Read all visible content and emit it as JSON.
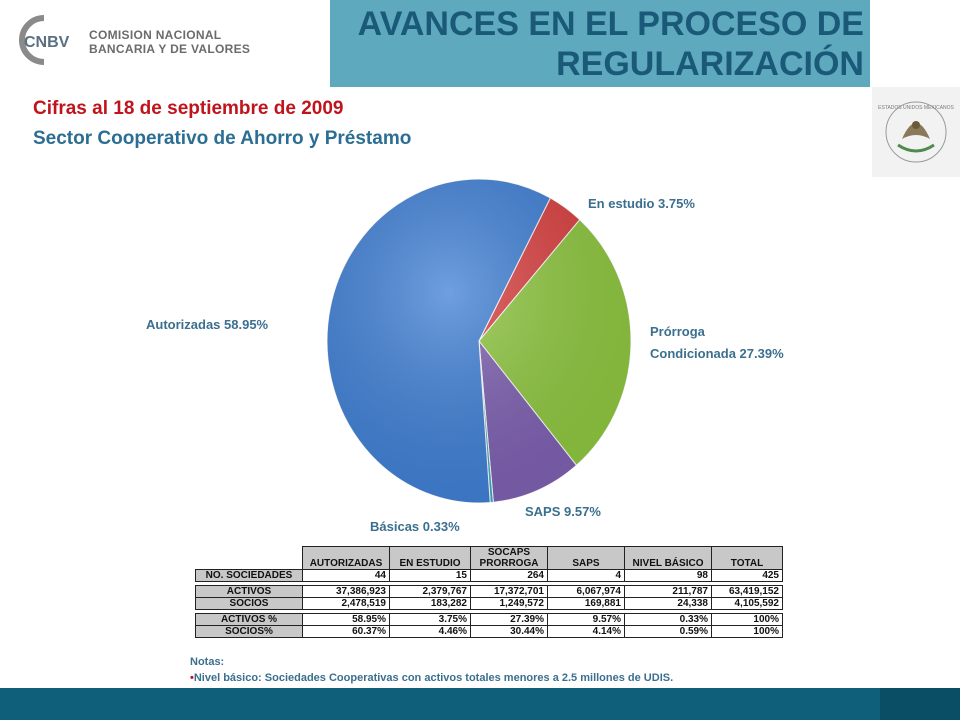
{
  "header": {
    "logo_text": "CNBV",
    "brand_line1": "COMISION NACIONAL",
    "brand_line2": "BANCARIA Y DE VALORES",
    "title_line1": "AVANCES EN EL PROCESO DE",
    "title_line2": "REGULARIZACIÓN",
    "seal_text": "ESTADOS UNIDOS MEXICANOS"
  },
  "subtitle": {
    "line1": "Cifras al 18 de septiembre de 2009",
    "line2": "Sector Cooperativo de Ahorro y Préstamo"
  },
  "colors": {
    "title_bar": "#5ea9bd",
    "subtitle_red": "#c0141c",
    "subtitle_blue": "#2c6e93",
    "footer": "#0f5f7a"
  },
  "chart_data": {
    "type": "pie",
    "slices": [
      {
        "name": "En estudio",
        "label": "En estudio  3.75%",
        "value": 3.75,
        "color": "#d94040"
      },
      {
        "name": "Prórroga Condicionada",
        "label_line1": "Prórroga",
        "label_line2": "Condicionada  27.39%",
        "value": 27.39,
        "color": "#8ec63f"
      },
      {
        "name": "SAPS",
        "label": "SAPS  9.57%",
        "value": 9.57,
        "color": "#7d5fb0"
      },
      {
        "name": "Básicas",
        "label": "Básicas  0.33%",
        "value": 0.33,
        "color": "#3aa7c4"
      },
      {
        "name": "Autorizadas",
        "label": "Autorizadas  58.95%",
        "value": 58.95,
        "color": "#3f7fd4"
      }
    ]
  },
  "table": {
    "headers": [
      "AUTORIZADAS",
      "EN ESTUDIO",
      "SOCAPS PRORROGA",
      "SAPS",
      "NIVEL BÁSICO",
      "TOTAL"
    ],
    "header_socaps_l1": "SOCAPS",
    "header_socaps_l2": "PRORROGA",
    "rows": [
      {
        "label": "NO. SOCIEDADES",
        "values": [
          "44",
          "15",
          "264",
          "4",
          "98",
          "425"
        ]
      },
      {
        "label": "ACTIVOS",
        "values": [
          "37,386,923",
          "2,379,767",
          "17,372,701",
          "6,067,974",
          "211,787",
          "63,419,152"
        ]
      },
      {
        "label": "SOCIOS",
        "values": [
          "2,478,519",
          "183,282",
          "1,249,572",
          "169,881",
          "24,338",
          "4,105,592"
        ]
      },
      {
        "label": "ACTIVOS %",
        "values": [
          "58.95%",
          "3.75%",
          "27.39%",
          "9.57%",
          "0.33%",
          "100%"
        ]
      },
      {
        "label": "SOCIOS%",
        "values": [
          "60.37%",
          "4.46%",
          "30.44%",
          "4.14%",
          "0.59%",
          "100%"
        ]
      }
    ]
  },
  "notes": {
    "heading": "Notas:",
    "bullet": "Nivel básico: Sociedades Cooperativas con activos totales menores a 2.5 millones de UDIS."
  }
}
